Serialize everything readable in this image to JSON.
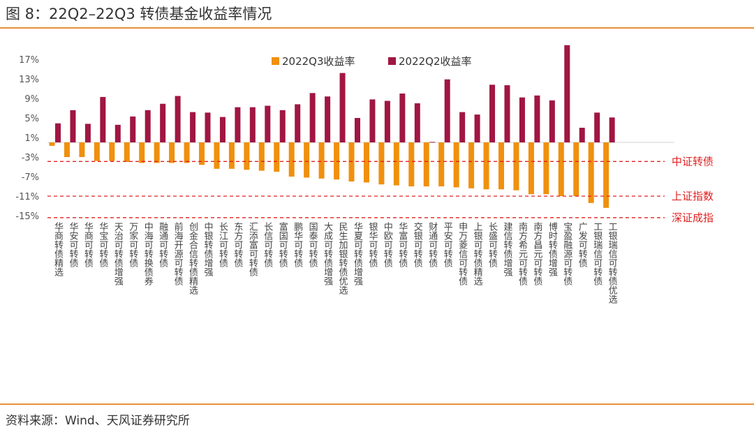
{
  "header": {
    "title": "图 8：22Q2–22Q3 转债基金收益率情况"
  },
  "footer": {
    "source": "资料来源：Wind、天风证券研究所"
  },
  "colors": {
    "q3": "#f0900e",
    "q2": "#a01642",
    "ref_line": "#e02020",
    "rule": "#e8903a"
  },
  "chart_data": {
    "type": "bar",
    "title": "",
    "xlabel": "",
    "ylabel": "",
    "ylim": [
      -15,
      19
    ],
    "yticks": [
      17,
      13,
      9,
      5,
      1,
      -3,
      -7,
      -11,
      -15
    ],
    "ytick_labels": [
      "17%",
      "13%",
      "9%",
      "5%",
      "1%",
      "-3%",
      "-7%",
      "-11%",
      "-15%"
    ],
    "legend_position": "top-center",
    "categories": [
      "华商转债精选",
      "华安可转债",
      "华商可转债",
      "华宝可转债",
      "天治可转债增强",
      "万家可转债",
      "中海可转换债券",
      "融通可转债",
      "前海开源可转债",
      "创金合信转债精选",
      "中银转债增强",
      "长江可转债",
      "东方可转债",
      "汇添富可转债",
      "长信可转债",
      "富国可转债",
      "鹏华可转债",
      "国泰可转债",
      "大成可转债增强",
      "民生加银转债优选",
      "华夏可转债增强",
      "银华可转债",
      "中欧可转债",
      "华富可转债",
      "交银可转债",
      "财通可转债",
      "平安可转债",
      "申万菱信可转债",
      "上银可转债精选",
      "长盛可转债",
      "建信转债增强",
      "南方希元可转债",
      "南方昌元可转债",
      "博时转债增强",
      "宝盈融源可转债",
      "广发可转债",
      "工银瑞信可转债",
      "工银瑞信可转债优选"
    ],
    "series": [
      {
        "name": "2022Q3收益率",
        "values": [
          -0.7,
          -3.0,
          -3.0,
          -3.8,
          -3.8,
          -4.0,
          -4.2,
          -4.2,
          -4.2,
          -4.2,
          -4.6,
          -5.4,
          -5.4,
          -5.6,
          -5.8,
          -6.0,
          -7.0,
          -7.2,
          -7.4,
          -7.6,
          -8.0,
          -8.2,
          -8.6,
          -8.8,
          -9.0,
          -9.0,
          -9.0,
          -9.2,
          -9.4,
          -9.6,
          -9.6,
          -9.8,
          -10.6,
          -10.6,
          -11.0,
          -11.0,
          -12.4,
          -13.4
        ]
      },
      {
        "name": "2022Q2收益率",
        "values": [
          3.9,
          6.6,
          3.8,
          9.3,
          3.6,
          5.3,
          6.6,
          7.9,
          9.5,
          6.2,
          6.1,
          5.2,
          7.2,
          7.2,
          7.5,
          6.6,
          7.8,
          10.1,
          9.4,
          14.2,
          5.0,
          8.8,
          8.5,
          10.0,
          8.0,
          0.1,
          12.9,
          6.2,
          5.7,
          11.8,
          11.7,
          9.2,
          9.6,
          8.6,
          19.9,
          3.0,
          6.1,
          5.1
        ]
      }
    ],
    "reference_lines": [
      {
        "label": "中证转债",
        "value": -3.9
      },
      {
        "label": "上证指数",
        "value": -11.0
      },
      {
        "label": "深证成指",
        "value": -15.4
      }
    ]
  }
}
